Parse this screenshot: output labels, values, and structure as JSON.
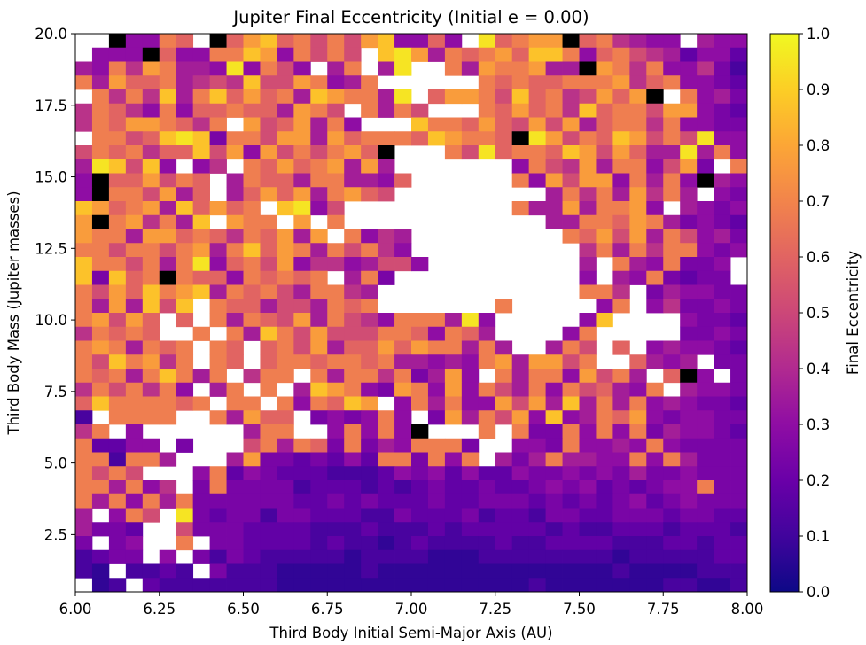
{
  "chart_data": {
    "type": "heatmap",
    "title": "Jupiter Final Eccentricity (Initial e = 0.00)",
    "xlabel": "Third Body Initial Semi-Major Axis (AU)",
    "ylabel": "Third Body Mass (Jupiter masses)",
    "colorbar_label": "Final Eccentricity",
    "colormap": "plasma",
    "xlim": [
      6.0,
      8.0
    ],
    "ylim": [
      0.5,
      20.0
    ],
    "clim": [
      0.0,
      1.0
    ],
    "grid_shape": [
      40,
      40
    ],
    "x_ticks": [
      "6.00",
      "6.25",
      "6.50",
      "6.75",
      "7.00",
      "7.25",
      "7.50",
      "7.75",
      "8.00"
    ],
    "y_ticks": [
      "2.5",
      "5.0",
      "7.5",
      "10.0",
      "12.5",
      "15.0",
      "17.5",
      "20.0"
    ],
    "colorbar_ticks": [
      "0.0",
      "0.1",
      "0.2",
      "0.3",
      "0.4",
      "0.5",
      "0.6",
      "0.7",
      "0.8",
      "0.9",
      "1.0"
    ],
    "value_legend": {
      "0": "0.02",
      "1": "0.07",
      "2": "0.12",
      "3": "0.18",
      "4": "0.24",
      "5": "0.30",
      "6": "0.36",
      "7": "0.43",
      "8": "0.52",
      "9": "0.60",
      "a": "0.68",
      "b": "0.77",
      "c": "0.87",
      "d": "0.95",
      "X": "unbound (no value)",
      "K": "black cell"
    },
    "rows_top_to_bottom": [
      "XXK55a9XK9bc9a8a8bc5595Xd9abbK9a7655X65543",
      "X555K955aacb5a8a8Xcdb6a9ab9cca59a8763553422",
      "65a7ba665d5a85X6aX6dXXa6baab66Kba7a5574234",
      "a6b99a6787c88ba56aXXXXXXa9a99aaab79a554322",
      "Xa7a7c6ac9b9a6cbaa6dX9bba8c9a78b9bKXa56432",
      "7a975a599a996ba8Xa6a8XXXa9b9a7c9aa8bb54333",
      "7a9bba97aXb89b6a5XXXcaa9b98b8b69aa7a55443",
      "Xaa89cdc4aa8bb6b9aaa9cbaa9Kdb8a9cb8a8d5543",
      "8a9a799c8b5b8a8ab9KXXXa8d9aa9cb8b966d6a542",
      "6dc8c5X57Xa9b9ab6b6XXXXXXX5a87b6aa58b4Xa44",
      "5K99b8a9X6a996aa6659XXXXXXa5b8bb5a6a5K65433",
      "5Kaa8b69X69b9b6ab98XXXXXXXXX6a7a6b7a6X544",
      "cb9ab6c9b9aXcd58XXXXXXXXXXa66b6aab5X6545",
      "bKab7a6cXbaaXbXaXXXXXXXXXXXX66aa9ba645433",
      "baa6bb9a97a9b6bXa576XXXXXXXXXa9b8b6a8564433",
      "aa8aa8ab6ac9ba6a8a75XXXXXXXXXX7a6a7aa5455",
      "caa8a6ad59a8b57756885XXXXXXXXX6Xa65a445",
      "c4c9aKa995a9a9aX6a4XXXXXXXXXXX5X65a4344",
      "a8b9cabc6a9a86aa76XXXXXXXXXXXXaa7X4655444",
      "a6b6c8cXa996886a9aXXXXXXXaXXXXX5aX5744544",
      "ab8b9X9Xa6a98b6a875aaa6d5XXXXX5cXXXX54434",
      "7a9a9XXaXa6ca8b888aa95a96XXXX5aXXXXX445433",
      "aba6a9aXa9X9a8b699b9baa6a6XX6a8X9X565543",
      "a8cab7aXa9X9aa9aa9a66565ab6bb8aXX9656X4443",
      "a9a6aca6aX7aaXa6aa7a46b5Xa6aa5b8a6X9K5X44",
      "7a8a7a5X6aXaX6cba54ba5b5a86a5a8965aX655442",
      "9caaaa9aXaaXa5a9cbX5a6a55b8b6c6a6a5654433",
      "2XaaaaXXa6b99X4545a5X4b6a8b5c56a9b5455443",
      "7aX5XXXXXX6aaXX5a5a5KXXXaXa44a5a5a465543",
      "a3355X4XXX8a6a94a465aaa4XX554a5565a5444432",
      "aa2aa6XXX6b4434353aa4a5aX646a6655a5a64443",
      "a8a8XXX5a35433322235453533544545464454443",
      "aa6a57X4a4444233323234334334545343455a444",
      "a6a5a6a44444433434333433444343434534544433",
      "6X5a8Xd434424433322433342332443344434433",
      "6443XX8444333322232223233333232233323332",
      "4X45XXaX4433332322123222232233332223323323",
      "2344X5X42432222212222111222222221222223323",
      "21X2232X4222111112111111111111112111122222",
      "X12X3222222211111111111111121111111221122"
    ]
  }
}
